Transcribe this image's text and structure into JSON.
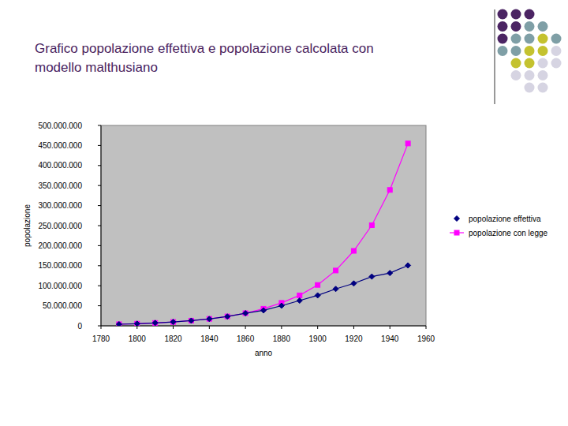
{
  "chart_data": {
    "type": "line",
    "title": "Grafico popolazione effettiva e popolazione calcolata con modello malthusiano",
    "x_label": "anno",
    "y_label": "popolazione",
    "x": [
      1790,
      1800,
      1810,
      1820,
      1830,
      1840,
      1850,
      1860,
      1870,
      1880,
      1890,
      1900,
      1910,
      1920,
      1930,
      1940,
      1950
    ],
    "series": [
      {
        "name": "popolazione effettiva",
        "color": "#000080",
        "marker": "diamond",
        "line_style": "solid",
        "values": [
          3900000,
          5300000,
          7200000,
          9600000,
          12900000,
          17100000,
          23200000,
          31400000,
          38600000,
          50200000,
          62900000,
          76000000,
          92000000,
          105700000,
          122800000,
          131700000,
          150700000
        ]
      },
      {
        "name": "popolazione con legge",
        "color": "#ff00ff",
        "marker": "square",
        "line_style": "solid",
        "values": [
          4000000,
          5300000,
          7200000,
          9600000,
          12900000,
          17400000,
          23400000,
          31500000,
          42500000,
          57300000,
          76000000,
          102000000,
          138000000,
          187000000,
          251000000,
          339000000,
          455000000
        ]
      }
    ],
    "xlim": [
      1780,
      1960
    ],
    "xticks": [
      1780,
      1800,
      1820,
      1840,
      1860,
      1880,
      1900,
      1920,
      1940,
      1960
    ],
    "ylim": [
      0,
      500000000
    ],
    "yticks": [
      0,
      {
        "value": 50000000,
        "label": "50.000.000"
      },
      {
        "value": 100000000,
        "label": "100.000.000"
      },
      {
        "value": 150000000,
        "label": "150.000.000"
      },
      {
        "value": 200000000,
        "label": "200.000.000"
      },
      {
        "value": 250000000,
        "label": "250.000.000"
      },
      {
        "value": 300000000,
        "label": "300.000.000"
      },
      {
        "value": 350000000,
        "label": "350.000.000"
      },
      {
        "value": 400000000,
        "label": "400.000.000"
      },
      {
        "value": 450000000,
        "label": "450.000.000"
      },
      {
        "value": 500000000,
        "label": "500.000.000"
      }
    ],
    "grid": false,
    "legend": "right"
  }
}
